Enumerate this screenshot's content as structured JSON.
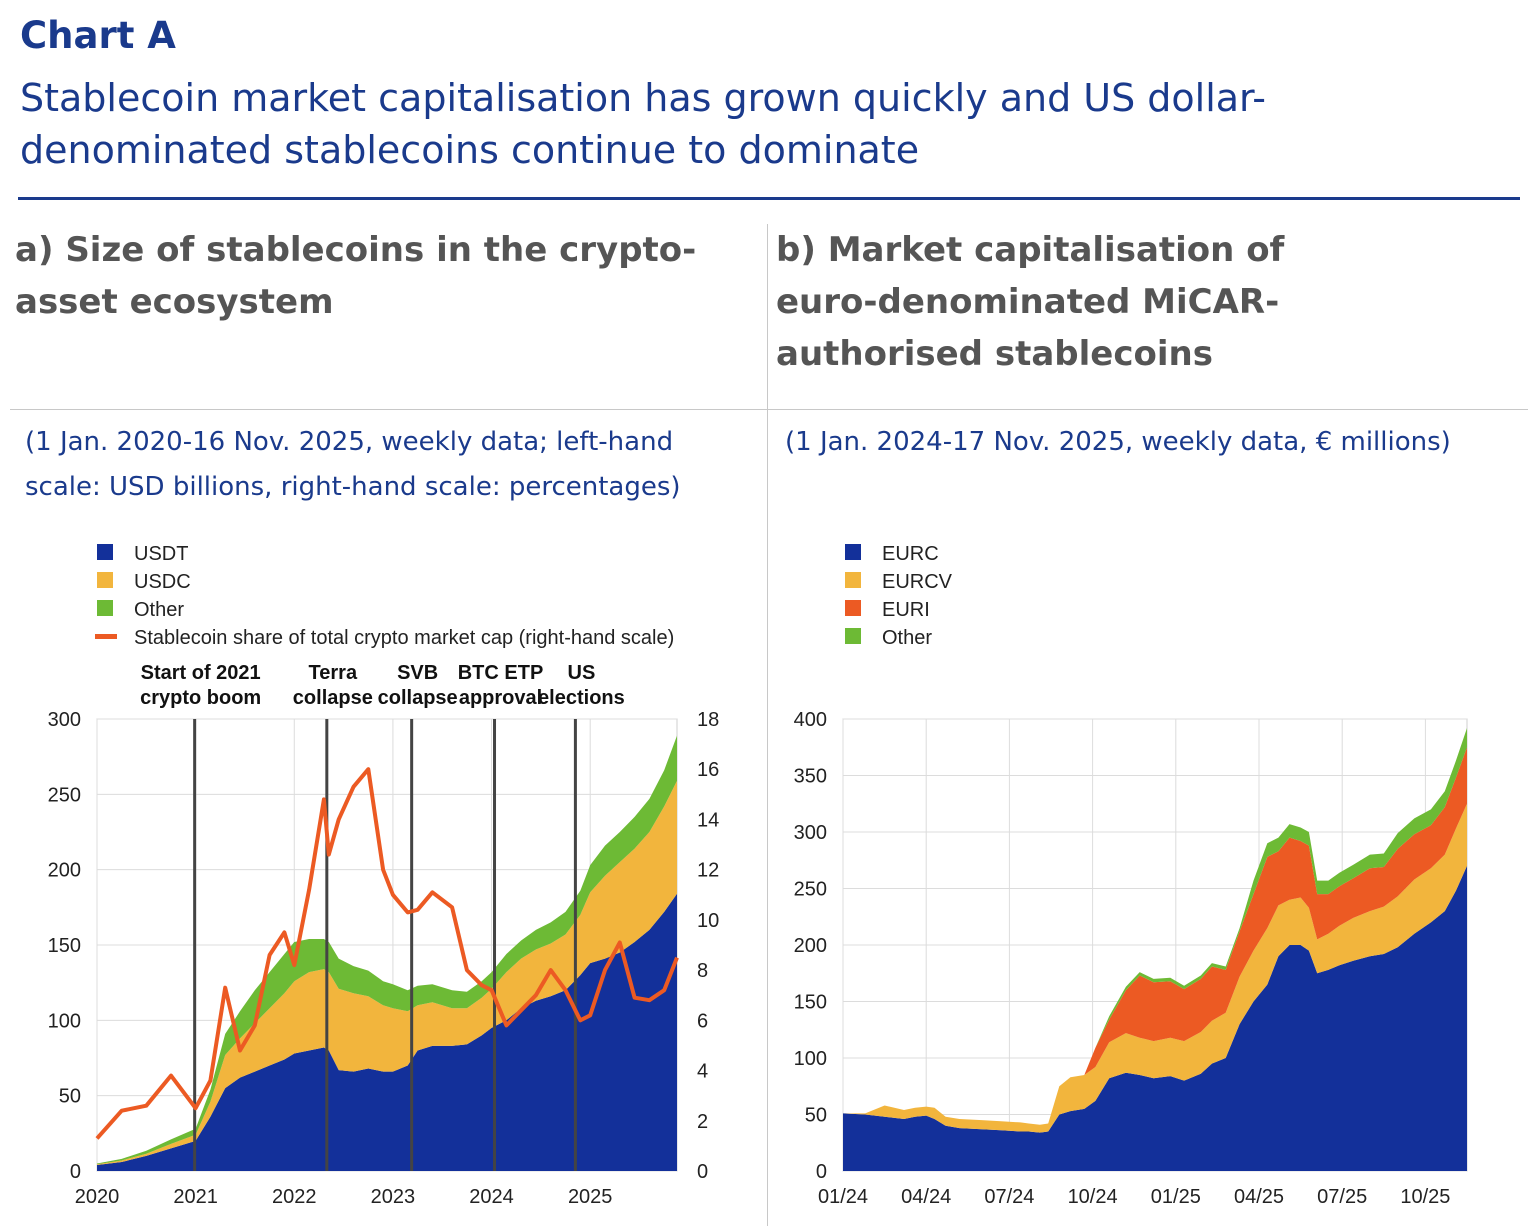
{
  "header": {
    "chart_label": "Chart A",
    "title": "Stablecoin market capitalisation has grown quickly and US dollar-denominated stablecoins continue to dominate"
  },
  "colors": {
    "brand_blue": "#1a3a8c",
    "usdt_eurc": "#13309a",
    "usdc_eurcv": "#f2b53d",
    "other": "#6dba35",
    "share_euri": "#ec5a23"
  },
  "panel_a": {
    "title": "a) Size of stablecoins in the crypto-asset ecosystem",
    "note": "(1 Jan. 2020-16 Nov. 2025, weekly data; left-hand scale: USD billions, right-hand scale: percentages)"
  },
  "panel_b": {
    "title": "b) Market capitalisation of euro-denominated MiCAR-authorised stablecoins",
    "note": "(1 Jan. 2024-17 Nov. 2025, weekly data, € millions)"
  },
  "chart_data": [
    {
      "type": "area",
      "stacked": true,
      "legend": [
        {
          "label": "USDT",
          "color": "#13309a",
          "kind": "box"
        },
        {
          "label": "USDC",
          "color": "#f2b53d",
          "kind": "box"
        },
        {
          "label": "Other",
          "color": "#6dba35",
          "kind": "box"
        },
        {
          "label": "Stablecoin share of total crypto market cap (right-hand scale)",
          "color": "#ec5a23",
          "kind": "line"
        }
      ],
      "x_ticks": [
        "2020",
        "2021",
        "2022",
        "2023",
        "2024",
        "2025"
      ],
      "x_tick_values": [
        2020,
        2021,
        2022,
        2023,
        2024,
        2025
      ],
      "xlim": [
        2020,
        2025.88
      ],
      "ylim": [
        0,
        300
      ],
      "y_ticks": [
        0,
        50,
        100,
        150,
        200,
        250,
        300
      ],
      "y2lim": [
        0,
        18
      ],
      "y2_ticks": [
        0,
        2,
        4,
        6,
        8,
        10,
        12,
        14,
        16,
        18
      ],
      "grid": true,
      "events": [
        {
          "x": 2020.99,
          "line1": "Start of 2021",
          "line2": "crypto boom"
        },
        {
          "x": 2022.33,
          "line1": "Terra",
          "line2": "collapse"
        },
        {
          "x": 2023.19,
          "line1": "SVB",
          "line2": "collapse"
        },
        {
          "x": 2024.03,
          "line1": "BTC ETP",
          "line2": "approval"
        },
        {
          "x": 2024.85,
          "line1": "US",
          "line2": "elections"
        }
      ],
      "x": [
        2020.0,
        2020.25,
        2020.5,
        2020.75,
        2021.0,
        2021.15,
        2021.3,
        2021.45,
        2021.6,
        2021.75,
        2021.9,
        2022.0,
        2022.15,
        2022.3,
        2022.35,
        2022.45,
        2022.6,
        2022.75,
        2022.9,
        2023.0,
        2023.15,
        2023.25,
        2023.4,
        2023.6,
        2023.75,
        2023.9,
        2024.0,
        2024.15,
        2024.3,
        2024.45,
        2024.6,
        2024.75,
        2024.9,
        2025.0,
        2025.15,
        2025.3,
        2025.45,
        2025.6,
        2025.75,
        2025.88
      ],
      "series": [
        {
          "name": "USDT",
          "values": [
            4,
            6,
            10,
            15,
            20,
            36,
            55,
            62,
            66,
            70,
            74,
            78,
            80,
            82,
            80,
            67,
            66,
            68,
            66,
            66,
            70,
            80,
            83,
            83,
            84,
            90,
            95,
            100,
            108,
            113,
            116,
            120,
            130,
            138,
            141,
            145,
            152,
            160,
            172,
            184
          ]
        },
        {
          "name": "USDC",
          "values": [
            0.5,
            1,
            1.5,
            3,
            4,
            10,
            22,
            26,
            32,
            38,
            44,
            48,
            52,
            52,
            52,
            54,
            52,
            48,
            44,
            42,
            36,
            30,
            29,
            25,
            24,
            25,
            26,
            32,
            33,
            34,
            35,
            37,
            40,
            47,
            55,
            60,
            62,
            65,
            70,
            75
          ]
        },
        {
          "name": "Other",
          "values": [
            0.5,
            1,
            2,
            3,
            4,
            8,
            14,
            18,
            22,
            24,
            26,
            26,
            22,
            20,
            20,
            20,
            18,
            17,
            16,
            16,
            14,
            13,
            12,
            12,
            11,
            11,
            11,
            12,
            12,
            13,
            14,
            15,
            16,
            18,
            20,
            20,
            21,
            22,
            24,
            30
          ]
        },
        {
          "name": "Stablecoin share of total crypto market cap (right-hand scale)",
          "axis": "right",
          "values": [
            1.3,
            2.4,
            2.6,
            3.8,
            2.5,
            3.6,
            7.3,
            4.8,
            5.8,
            8.6,
            9.5,
            8.2,
            11.2,
            14.8,
            12.6,
            14.0,
            15.3,
            16.0,
            12.0,
            11.0,
            10.3,
            10.4,
            11.1,
            10.5,
            8.0,
            7.4,
            7.2,
            5.8,
            6.4,
            7.0,
            8.0,
            7.2,
            6.0,
            6.2,
            8.0,
            9.1,
            6.9,
            6.8,
            7.2,
            8.5
          ]
        }
      ]
    },
    {
      "type": "area",
      "stacked": true,
      "legend": [
        {
          "label": "EURC",
          "color": "#13309a",
          "kind": "box"
        },
        {
          "label": "EURCV",
          "color": "#f2b53d",
          "kind": "box"
        },
        {
          "label": "EURI",
          "color": "#ec5a23",
          "kind": "box"
        },
        {
          "label": "Other",
          "color": "#6dba35",
          "kind": "box"
        }
      ],
      "x_ticks": [
        "01/24",
        "04/24",
        "07/24",
        "10/24",
        "01/25",
        "04/25",
        "07/25",
        "10/25"
      ],
      "x_tick_values": [
        0,
        3,
        6,
        9,
        12,
        15,
        18,
        21
      ],
      "xlim": [
        0,
        22.5
      ],
      "ylim": [
        0,
        400
      ],
      "y_ticks": [
        0,
        50,
        100,
        150,
        200,
        250,
        300,
        350,
        400
      ],
      "grid": true,
      "x": [
        0,
        0.8,
        1.5,
        2.2,
        2.6,
        3.0,
        3.3,
        3.7,
        4.2,
        5.0,
        5.7,
        6.4,
        6.7,
        7.1,
        7.4,
        7.8,
        8.2,
        8.7,
        9.1,
        9.6,
        10.2,
        10.7,
        11.2,
        11.8,
        12.3,
        12.9,
        13.3,
        13.8,
        14.3,
        14.8,
        15.3,
        15.7,
        16.1,
        16.5,
        16.8,
        17.1,
        17.5,
        17.9,
        18.4,
        19.0,
        19.5,
        20.0,
        20.6,
        21.2,
        21.7,
        22.1,
        22.5
      ],
      "series": [
        {
          "name": "EURC",
          "values": [
            51,
            50,
            48,
            46,
            48,
            49,
            46,
            40,
            38,
            37,
            36,
            35,
            35,
            34,
            35,
            50,
            53,
            55,
            62,
            82,
            87,
            85,
            82,
            84,
            80,
            86,
            95,
            100,
            130,
            150,
            165,
            190,
            200,
            200,
            195,
            175,
            178,
            182,
            186,
            190,
            192,
            198,
            210,
            220,
            230,
            248,
            270
          ]
        },
        {
          "name": "EURCV",
          "values": [
            0,
            1,
            10,
            8,
            8,
            8,
            10,
            8,
            8,
            8,
            8,
            8,
            7,
            7,
            7,
            25,
            30,
            30,
            30,
            32,
            35,
            33,
            33,
            34,
            35,
            37,
            38,
            40,
            42,
            45,
            50,
            45,
            40,
            42,
            38,
            30,
            32,
            35,
            38,
            40,
            42,
            45,
            48,
            48,
            50,
            55,
            55
          ]
        },
        {
          "name": "EURI",
          "values": [
            0,
            0,
            0,
            0,
            0,
            0,
            0,
            0,
            0,
            0,
            0,
            0,
            0,
            0,
            0,
            0,
            0,
            0,
            17,
            20,
            38,
            55,
            52,
            50,
            46,
            47,
            48,
            38,
            40,
            50,
            63,
            48,
            55,
            50,
            55,
            40,
            35,
            35,
            35,
            38,
            35,
            42,
            40,
            38,
            42,
            45,
            50
          ]
        },
        {
          "name": "Other",
          "values": [
            0,
            0,
            0,
            0,
            0,
            0,
            0,
            0,
            0,
            0,
            0,
            0,
            0,
            0,
            0,
            0,
            0,
            0,
            0,
            3,
            3,
            3,
            3,
            3,
            3,
            3,
            3,
            3,
            3,
            12,
            12,
            12,
            12,
            12,
            12,
            12,
            12,
            12,
            12,
            12,
            12,
            14,
            14,
            14,
            14,
            15,
            17
          ]
        }
      ]
    }
  ]
}
